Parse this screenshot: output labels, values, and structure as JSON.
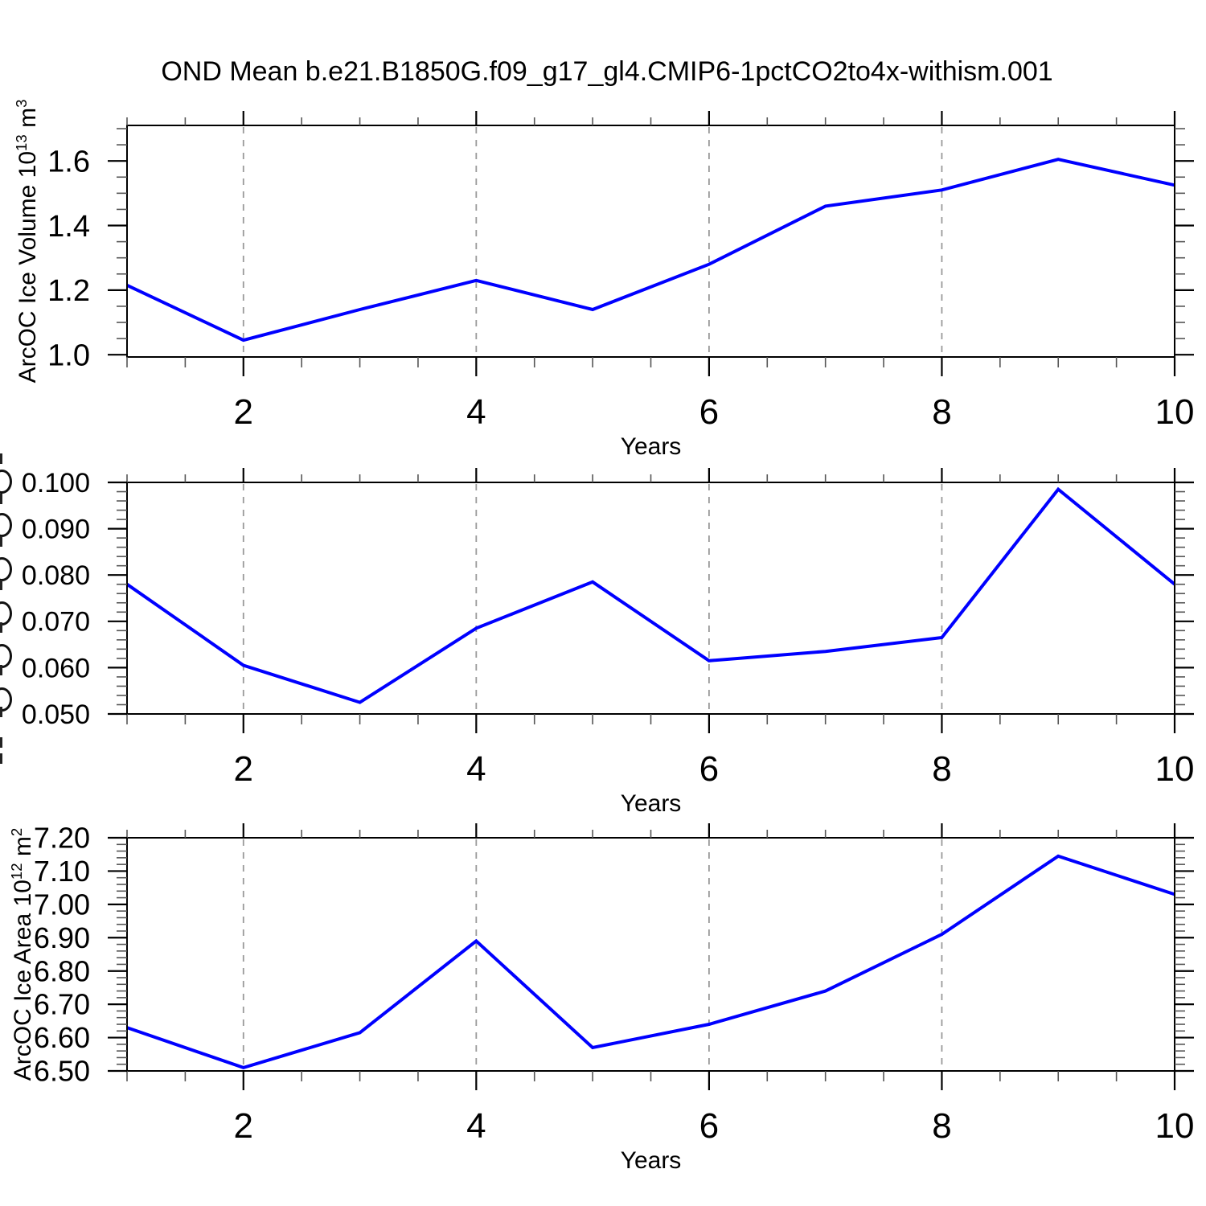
{
  "title": "OND Mean b.e21.B1850G.f09_g17_gl4.CMIP6-1pctCO2to4x-withism.001",
  "colors": {
    "line": "#0000ff",
    "frame": "#000000",
    "major_tick": "#000000",
    "minor_tick": "#555555",
    "grid": "#999999",
    "text": "#000000",
    "background": "#ffffff"
  },
  "x_axis": {
    "label": "Years",
    "min": 1,
    "max": 10,
    "major_ticks": [
      2,
      4,
      6,
      8,
      10
    ],
    "major_labels": [
      "2",
      "4",
      "6",
      "8",
      "10"
    ],
    "minor_step": 0.5,
    "grid_lines_at": [
      2,
      4,
      6,
      8
    ]
  },
  "chart_data": [
    {
      "type": "line",
      "name": "arcoc-ice-volume",
      "ylabel_parts": [
        {
          "t": "ArcOC Ice Volume 10"
        },
        {
          "t": "13",
          "sup": true
        },
        {
          "t": " m"
        },
        {
          "t": "3",
          "sup": true
        }
      ],
      "ylabel_clipped": false,
      "xlabel": "Years",
      "x": [
        1,
        2,
        3,
        4,
        5,
        6,
        7,
        8,
        9,
        10
      ],
      "values": [
        1.215,
        1.045,
        1.14,
        1.23,
        1.14,
        1.28,
        1.46,
        1.51,
        1.605,
        1.525
      ],
      "ylim": [
        0.993,
        1.71
      ],
      "y_major_ticks": [
        {
          "v": 1.0,
          "label": "1.0"
        },
        {
          "v": 1.2,
          "label": "1.2"
        },
        {
          "v": 1.4,
          "label": "1.4"
        },
        {
          "v": 1.6,
          "label": "1.6"
        }
      ],
      "y_minor_step": 0.05,
      "grid": "vertical-dashed-at-even-years",
      "legend": "none"
    },
    {
      "type": "line",
      "name": "arcoc-middle-series",
      "ylabel_parts": [],
      "ylabel_clipped": true,
      "xlabel": "Years",
      "x": [
        1,
        2,
        3,
        4,
        5,
        6,
        7,
        8,
        9,
        10
      ],
      "values": [
        0.078,
        0.0605,
        0.0525,
        0.0685,
        0.0785,
        0.0615,
        0.0635,
        0.0665,
        0.0985,
        0.078
      ],
      "ylim": [
        0.05,
        0.1
      ],
      "y_major_ticks": [
        {
          "v": 0.05,
          "label": "0.050"
        },
        {
          "v": 0.06,
          "label": "0.060"
        },
        {
          "v": 0.07,
          "label": "0.070"
        },
        {
          "v": 0.08,
          "label": "0.080"
        },
        {
          "v": 0.09,
          "label": "0.090"
        },
        {
          "v": 0.1,
          "label": "0.100"
        }
      ],
      "y_minor_step": 0.002,
      "grid": "vertical-dashed-at-even-years",
      "legend": "none"
    },
    {
      "type": "line",
      "name": "arcoc-ice-area",
      "ylabel_parts": [
        {
          "t": "ArcOC Ice Area 10"
        },
        {
          "t": "12",
          "sup": true
        },
        {
          "t": " m"
        },
        {
          "t": "2",
          "sup": true
        }
      ],
      "ylabel_clipped": false,
      "xlabel": "Years",
      "x": [
        1,
        2,
        3,
        4,
        5,
        6,
        7,
        8,
        9,
        10
      ],
      "values": [
        6.63,
        6.51,
        6.615,
        6.89,
        6.57,
        6.64,
        6.74,
        6.91,
        7.145,
        7.03
      ],
      "ylim": [
        6.5,
        7.2
      ],
      "y_major_ticks": [
        {
          "v": 6.5,
          "label": "6.50"
        },
        {
          "v": 6.6,
          "label": "6.60"
        },
        {
          "v": 6.7,
          "label": "6.70"
        },
        {
          "v": 6.8,
          "label": "6.80"
        },
        {
          "v": 6.9,
          "label": "6.90"
        },
        {
          "v": 7.0,
          "label": "7.00"
        },
        {
          "v": 7.1,
          "label": "7.10"
        },
        {
          "v": 7.2,
          "label": "7.20"
        }
      ],
      "y_minor_step": 0.02,
      "grid": "vertical-dashed-at-even-years",
      "legend": "none"
    }
  ]
}
